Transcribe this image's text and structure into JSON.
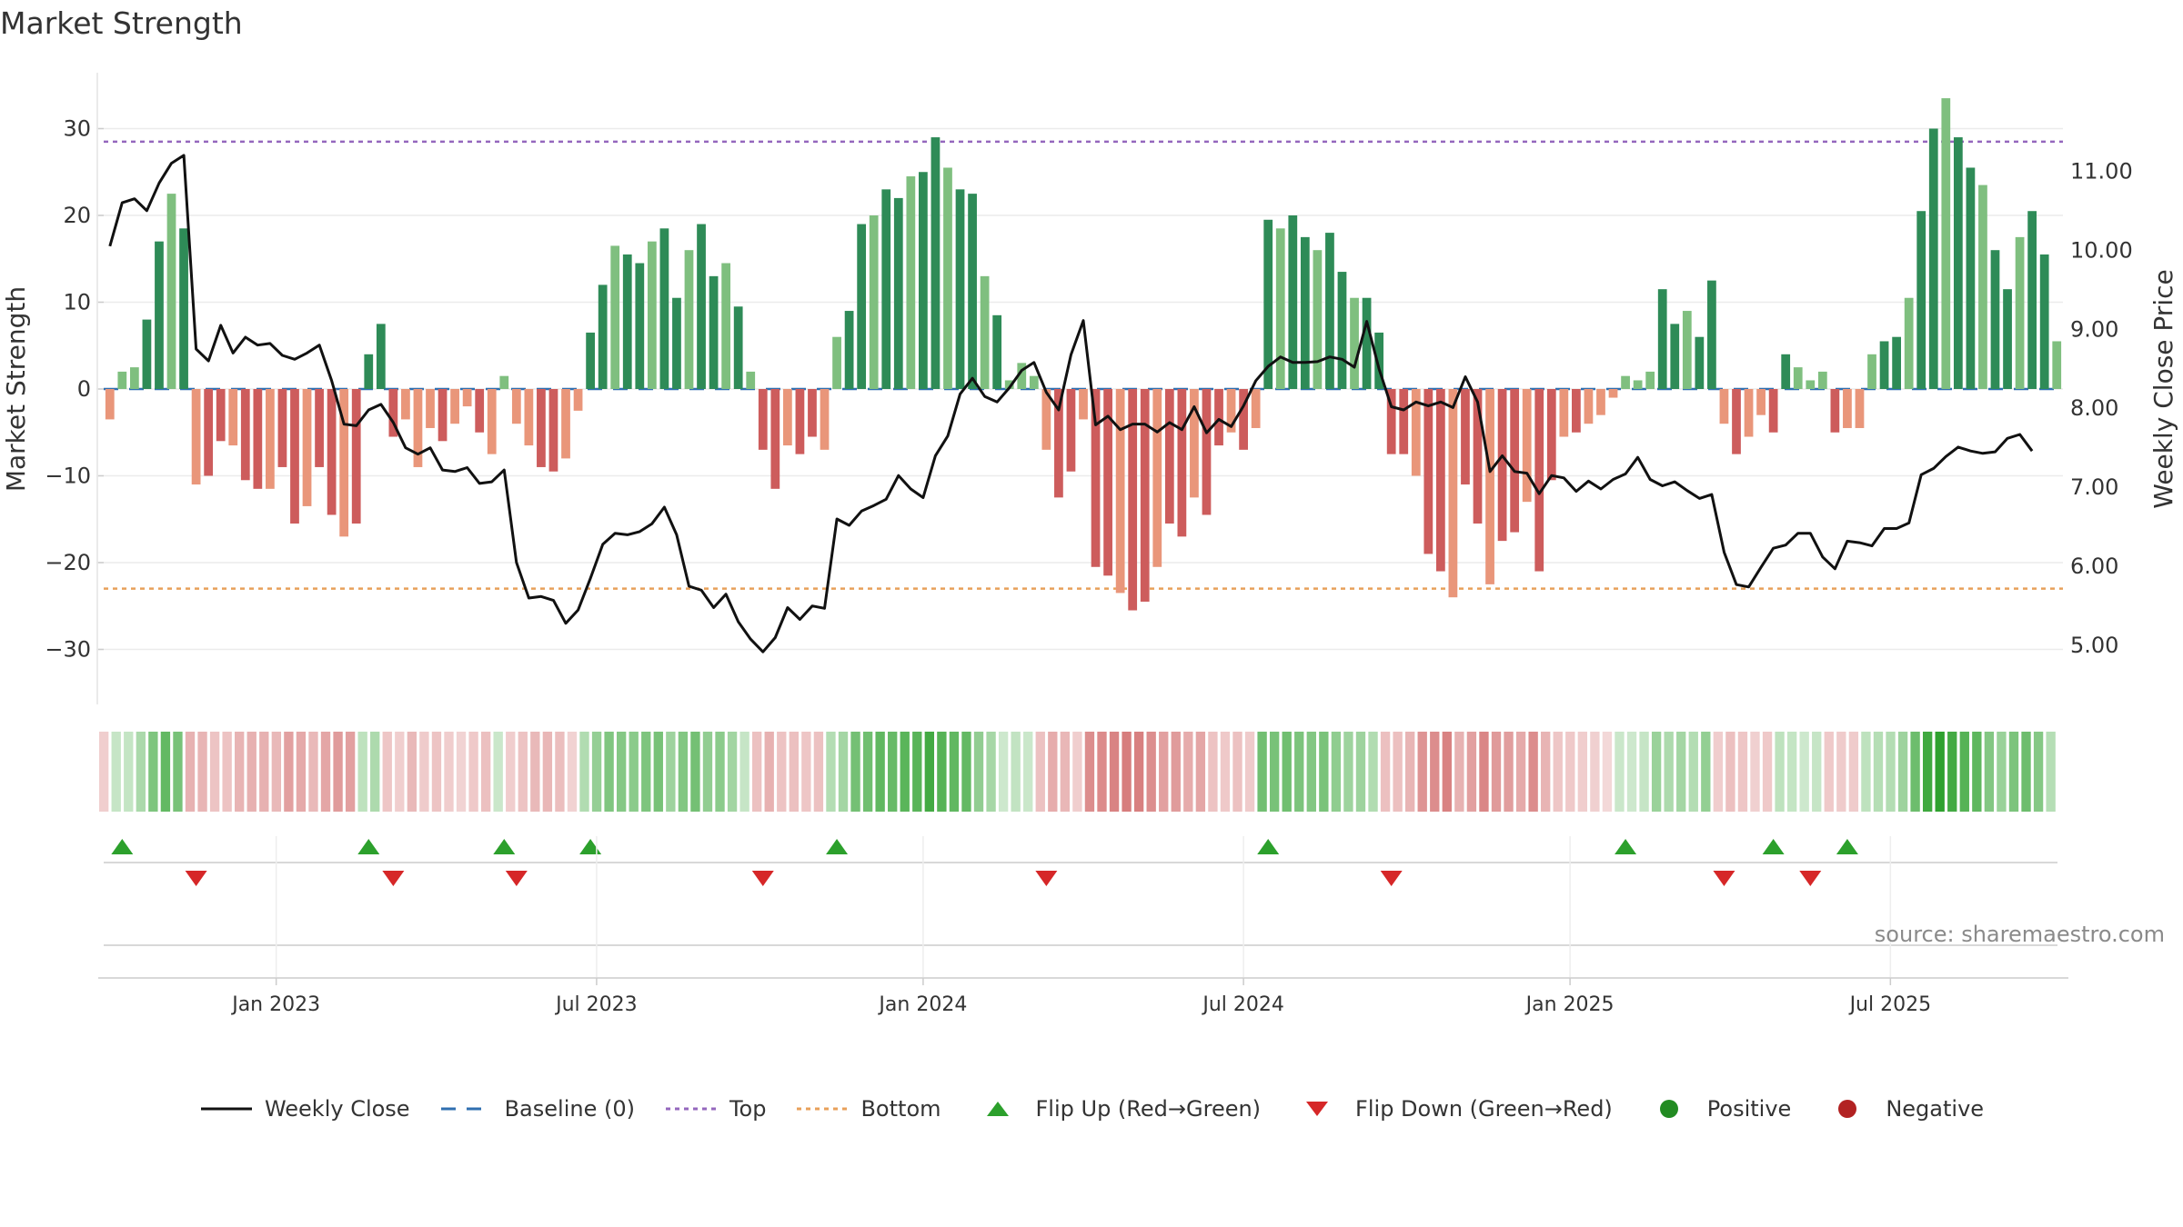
{
  "chart_data": {
    "type": "bar",
    "title": "Market Strength",
    "source_label": "source: sharemaestro.com",
    "ylabel_left": "Market Strength",
    "ylabel_right": "Weekly Close Price",
    "ylim_left": [
      -36,
      36
    ],
    "ylim_right": [
      4.6,
      11.9
    ],
    "left_ticks": [
      30,
      20,
      10,
      0,
      -10,
      -20,
      -30
    ],
    "left_tick_labels": [
      "30",
      "20",
      "10",
      "0",
      "−10",
      "−20",
      "−30"
    ],
    "right_ticks": [
      11,
      10,
      9,
      8,
      7,
      6,
      5
    ],
    "right_tick_labels": [
      "11.00",
      "10.00",
      "9.00",
      "8.00",
      "7.00",
      "6.00",
      "5.00"
    ],
    "x_tick_labels": [
      "Jan 2023",
      "Jul 2023",
      "Jan 2024",
      "Jul 2024",
      "Jan 2025",
      "Jul 2025"
    ],
    "x_tick_index": [
      14,
      40,
      66.5,
      92.5,
      119,
      145
    ],
    "top_line": 28.5,
    "bottom_line": -23,
    "strength": [
      -3.5,
      2,
      2.5,
      8,
      17,
      22.5,
      18.5,
      -11,
      -10,
      -6,
      -6.5,
      -10.5,
      -11.5,
      -11.5,
      -9,
      -15.5,
      -13.5,
      -9,
      -14.5,
      -17,
      -15.5,
      4,
      7.5,
      -5.5,
      -3.5,
      -9,
      -4.5,
      -6,
      -4,
      -2,
      -5,
      -7.5,
      1.5,
      -4,
      -6.5,
      -9,
      -9.5,
      -8,
      -2.5,
      6.5,
      12,
      16.5,
      15.5,
      14.5,
      17,
      18.5,
      10.5,
      16,
      19,
      13,
      14.5,
      9.5,
      2,
      -7,
      -11.5,
      -6.5,
      -7.5,
      -5.5,
      -7,
      6,
      9,
      19,
      20,
      23,
      22,
      24.5,
      25,
      29,
      25.5,
      23,
      22.5,
      13,
      8.5,
      1,
      3,
      1.5,
      -7,
      -12.5,
      -9.5,
      -3.5,
      -20.5,
      -21.5,
      -23.5,
      -25.5,
      -24.5,
      -20.5,
      -15.5,
      -17,
      -12.5,
      -14.5,
      -6.5,
      -5,
      -7,
      -4.5,
      19.5,
      18.5,
      20,
      17.5,
      16,
      18,
      13.5,
      10.5,
      10.5,
      6.5,
      -7.5,
      -7.5,
      -10,
      -19,
      -21,
      -24,
      -11,
      -15.5,
      -22.5,
      -17.5,
      -16.5,
      -13,
      -21,
      -10.5,
      -5.5,
      -5,
      -4,
      -3,
      -1,
      1.5,
      1,
      2,
      11.5,
      7.5,
      9,
      6,
      12.5,
      -4,
      -7.5,
      -5.5,
      -3,
      -5,
      4,
      2.5,
      1,
      2,
      -5,
      -4.5,
      -4.5,
      4,
      5.5,
      6,
      10.5,
      20.5,
      30,
      33.5,
      29,
      25.5,
      23.5,
      16,
      11.5,
      17.5,
      20.5,
      15.5,
      5.5
    ],
    "weekly_close": [
      10.05,
      10.6,
      10.65,
      10.5,
      10.85,
      11.1,
      11.2,
      8.75,
      8.6,
      9.05,
      8.7,
      8.9,
      8.8,
      8.82,
      8.67,
      8.62,
      8.7,
      8.8,
      8.35,
      7.8,
      7.78,
      7.98,
      8.05,
      7.82,
      7.5,
      7.42,
      7.5,
      7.22,
      7.2,
      7.25,
      7.05,
      7.07,
      7.22,
      6.05,
      5.6,
      5.62,
      5.57,
      5.28,
      5.45,
      5.85,
      6.28,
      6.42,
      6.4,
      6.44,
      6.54,
      6.75,
      6.4,
      5.75,
      5.7,
      5.48,
      5.65,
      5.3,
      5.08,
      4.92,
      5.1,
      5.48,
      5.33,
      5.5,
      5.47,
      6.6,
      6.52,
      6.7,
      6.77,
      6.85,
      7.15,
      6.98,
      6.87,
      7.4,
      7.65,
      8.18,
      8.38,
      8.15,
      8.08,
      8.26,
      8.48,
      8.58,
      8.2,
      7.98,
      8.68,
      9.11,
      7.79,
      7.9,
      7.73,
      7.8,
      7.8,
      7.7,
      7.82,
      7.73,
      8.02,
      7.69,
      7.86,
      7.77,
      8.03,
      8.35,
      8.53,
      8.65,
      8.58,
      8.58,
      8.59,
      8.65,
      8.62,
      8.52,
      9.1,
      8.5,
      8.02,
      7.98,
      8.08,
      8.03,
      8.08,
      8.01,
      8.4,
      8.08,
      7.2,
      7.4,
      7.2,
      7.18,
      6.92,
      7.15,
      7.12,
      6.95,
      7.08,
      6.98,
      7.1,
      7.17,
      7.38,
      7.1,
      7.02,
      7.07,
      6.96,
      6.86,
      6.91,
      6.18,
      5.77,
      5.74,
      5.99,
      6.23,
      6.27,
      6.42,
      6.42,
      6.12,
      5.97,
      6.32,
      6.3,
      6.26,
      6.48,
      6.48,
      6.55,
      7.16,
      7.24,
      7.39,
      7.51,
      7.46,
      7.43,
      7.45,
      7.62,
      7.67,
      7.46
    ],
    "flip_up_index": [
      1,
      21,
      32,
      39,
      59,
      94,
      123,
      135,
      141
    ],
    "flip_down_index": [
      7,
      23,
      33,
      53,
      76,
      104,
      131,
      138
    ],
    "colors": {
      "positive_strong": "#2e8b57",
      "positive_light": "#7fbf7f",
      "negative_strong": "#cd5c5c",
      "negative_light": "#e9967a",
      "close_line": "#111111",
      "baseline": "#2f6fb0",
      "top_line": "#9467bd",
      "bottom_line": "#e8a05a",
      "flip_up": "#2ca02c",
      "flip_down": "#d62728",
      "positive_dot": "#228b22",
      "negative_dot": "#b22222"
    },
    "legend": [
      {
        "label": "Weekly Close",
        "kind": "line"
      },
      {
        "label": "Baseline (0)",
        "kind": "dash"
      },
      {
        "label": "Top",
        "kind": "dotted-purple"
      },
      {
        "label": "Bottom",
        "kind": "dotted-orange"
      },
      {
        "label": "Flip Up (Red→Green)",
        "kind": "tri-up"
      },
      {
        "label": "Flip Down (Green→Red)",
        "kind": "tri-down"
      },
      {
        "label": "Positive",
        "kind": "dot-green"
      },
      {
        "label": "Negative",
        "kind": "dot-red"
      }
    ]
  }
}
